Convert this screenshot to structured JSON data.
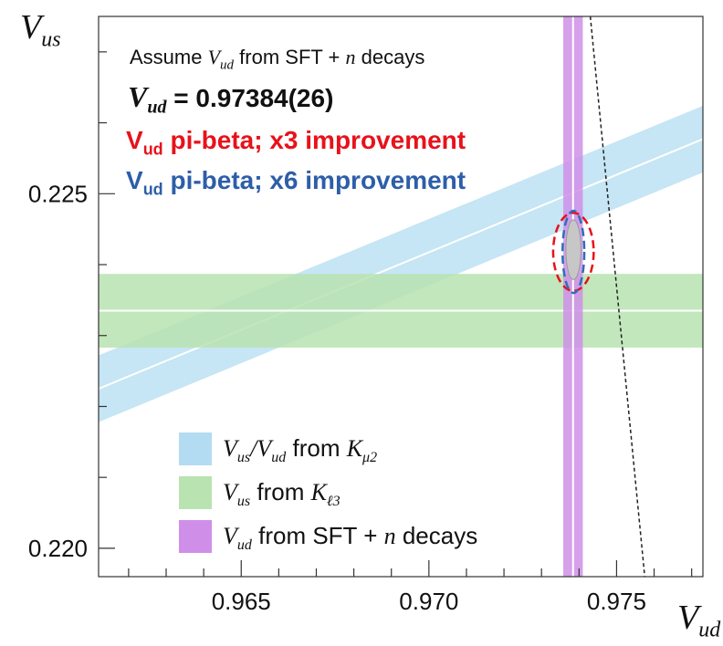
{
  "chart_data": {
    "type": "scatter",
    "xlabel_parts": [
      "V",
      "ud"
    ],
    "ylabel_parts": [
      "V",
      "us"
    ],
    "xlim": [
      0.9612,
      0.9773
    ],
    "ylim": [
      0.2196,
      0.2275
    ],
    "x_ticks": [
      0.965,
      0.97,
      0.975
    ],
    "x_tick_labels": [
      "0.965",
      "0.970",
      "0.975"
    ],
    "y_ticks": [
      0.22,
      0.225
    ],
    "y_tick_labels": [
      "0.220",
      "0.225"
    ],
    "minor_x_step": 0.001,
    "minor_y_step": 0.001,
    "bands": [
      {
        "name": "Vus/Vud from Kμ2",
        "kind": "slanted",
        "color": "#b3dcf2",
        "center": {
          "x_at_0.9612": 0.22225,
          "x_at_0.9773": 0.22577
        },
        "half_width_vus": 0.00047
      },
      {
        "name": "Vus from Kℓ3",
        "kind": "horizontal",
        "color": "#b9e3b0",
        "center": 0.22335,
        "half_width": 0.00052
      },
      {
        "name": "Vud from SFT + n decays",
        "kind": "vertical",
        "color": "#cf8fe8",
        "center": 0.97384,
        "half_width": 0.00026
      }
    ],
    "unitarity_line": {
      "x1": 0.9743,
      "y1": 0.2275,
      "x2": 0.97575,
      "y2": 0.2196
    },
    "fit_ellipse": {
      "cx": 0.97385,
      "cy": 0.22421,
      "rx": 0.0002,
      "ry": 0.00042,
      "color": "#c7c7c7"
    },
    "improvement_ellipses": [
      {
        "label": "x3",
        "color": "#e8111a",
        "cx": 0.97385,
        "cy": 0.22418,
        "rx": 0.00054,
        "ry": 0.00055
      },
      {
        "label": "x6",
        "color": "#2d6fb7",
        "cx": 0.97385,
        "cy": 0.22418,
        "rx": 0.00029,
        "ry": 0.00058
      }
    ]
  },
  "annotations": {
    "assume": {
      "pre": "Assume ",
      "var": "V",
      "sub": "ud",
      "post": " from SFT + ",
      "n": "n",
      "end": " decays"
    },
    "vud_value": {
      "var": "V",
      "sub": "ud",
      "eq": "= ",
      "value": "0.97384(26)"
    },
    "x3": {
      "v": "V",
      "sub": "ud",
      "text": " pi-beta; x3 improvement",
      "color": "#e8111a"
    },
    "x6": {
      "v": "V",
      "sub": "ud",
      "text": " pi-beta; x6 improvement",
      "color": "#2d5ea8"
    }
  },
  "legend": [
    {
      "var1": "V",
      "sub1": "us",
      "slash": "/",
      "var2": "V",
      "sub2": "ud",
      "mid": " from ",
      "var3": "K",
      "sub3": "μ2",
      "color": "#b3dcf2"
    },
    {
      "var1": "V",
      "sub1": "us",
      "mid": " from ",
      "var3": "K",
      "sub3": "ℓ3",
      "color": "#b9e3b0"
    },
    {
      "var1": "V",
      "sub1": "ud",
      "mid": " from SFT + ",
      "n": "n",
      "end": " decays",
      "color": "#cf8fe8"
    }
  ]
}
